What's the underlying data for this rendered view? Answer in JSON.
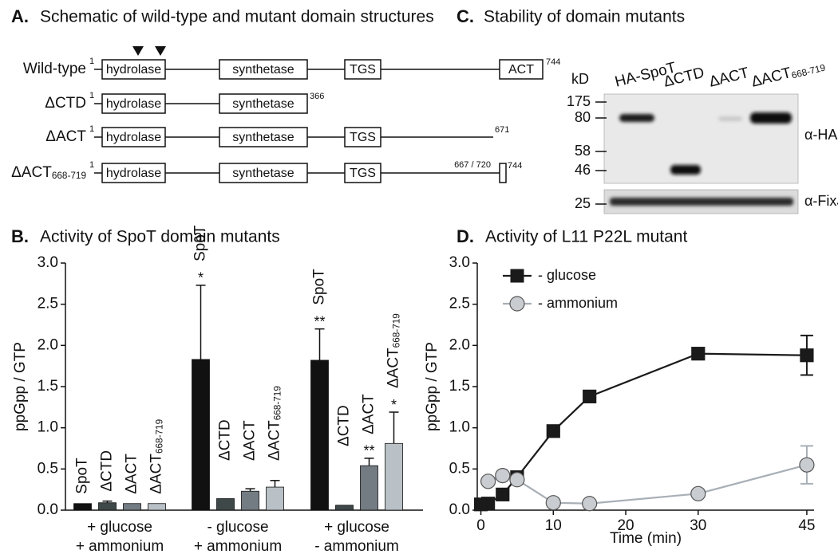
{
  "panel_a": {
    "letter": "A.",
    "title": "Schematic of wild-type and mutant domain structures",
    "rows": [
      {
        "label": "Wild-type",
        "start": "1",
        "end": "744",
        "domains": [
          "hydrolase",
          "synthetase",
          "TGS",
          "ACT"
        ]
      },
      {
        "label": "ΔCTD",
        "start": "1",
        "end": "366",
        "domains": [
          "hydrolase",
          "synthetase"
        ]
      },
      {
        "label": "ΔACT",
        "start": "1",
        "end": "671",
        "domains": [
          "hydrolase",
          "synthetase",
          "TGS"
        ]
      },
      {
        "label": "ΔACT",
        "label_sub": "668-719",
        "start": "1",
        "junction": "667 / 720",
        "end": "744",
        "domains": [
          "hydrolase",
          "synthetase",
          "TGS"
        ]
      }
    ]
  },
  "panel_c": {
    "letter": "C.",
    "title": "Stability of domain mutants",
    "lanes": [
      {
        "label": "HA-SpoT"
      },
      {
        "label": "ΔCTD"
      },
      {
        "label": "ΔACT"
      },
      {
        "label": "ΔACT",
        "label_sub": "668-719"
      }
    ],
    "unit": "kD",
    "markers": [
      175,
      80,
      58,
      46,
      25
    ],
    "antibodies": [
      "α-HA",
      "α-FixJ"
    ]
  },
  "chart_data": [
    {
      "type": "bar",
      "panel": "B.",
      "title": "Activity of SpoT domain mutants",
      "y_label": "ppGpp / GTP",
      "categories": [
        [
          "+ glucose",
          "+ ammonium"
        ],
        [
          "-  glucose",
          "+ ammonium"
        ],
        [
          "+ glucose",
          "-  ammonium"
        ]
      ],
      "ylim": [
        0,
        3
      ],
      "yticks": [
        {
          "value": 0,
          "label": "0.0"
        },
        {
          "value": 0.5,
          "label": "0.5"
        },
        {
          "value": 1,
          "label": "1.0"
        },
        {
          "value": 1.5,
          "label": "1.5"
        },
        {
          "value": 2,
          "label": "2.0"
        },
        {
          "value": 2.5,
          "label": "2.5"
        },
        {
          "value": 3,
          "label": "3.0"
        }
      ],
      "series": [
        {
          "name": "SpoT",
          "color": "#111111",
          "values": [
            0.08,
            1.83,
            1.82
          ],
          "errors": [
            null,
            0.9,
            0.38
          ],
          "stars": [
            null,
            "*",
            "**"
          ]
        },
        {
          "name": "ΔCTD",
          "color": "#3e4848",
          "values": [
            0.09,
            0.14,
            0.06
          ],
          "errors": [
            0.02,
            null,
            null
          ],
          "stars": [
            null,
            null,
            null
          ]
        },
        {
          "name": "ΔACT",
          "color": "#737b83",
          "values": [
            0.08,
            0.23,
            0.54
          ],
          "errors": [
            null,
            0.03,
            0.09
          ],
          "stars": [
            null,
            null,
            "**"
          ]
        },
        {
          "name": "ΔACT",
          "name_sub": "668-719",
          "color": "#b9c0c6",
          "values": [
            0.08,
            0.28,
            0.81
          ],
          "errors": [
            null,
            0.08,
            0.38
          ],
          "stars": [
            null,
            null,
            "*"
          ]
        }
      ]
    },
    {
      "type": "line",
      "panel": "D.",
      "title": "Activity of L11 P22L mutant",
      "x_label": "Time (min)",
      "y_label": "ppGpp / GTP",
      "xlim": [
        -0.5,
        46
      ],
      "xticks": [
        0,
        10,
        20,
        30,
        45
      ],
      "ylim": [
        0,
        3
      ],
      "yticks": [
        {
          "value": 0,
          "label": "0.0"
        },
        {
          "value": 0.5,
          "label": "0.5"
        },
        {
          "value": 1,
          "label": "1.0"
        },
        {
          "value": 1.5,
          "label": "1.5"
        },
        {
          "value": 2,
          "label": "2.0"
        },
        {
          "value": 2.5,
          "label": "2.5"
        },
        {
          "value": 3,
          "label": "3.0"
        }
      ],
      "legend": "upper left",
      "series": [
        {
          "name": "- glucose",
          "color": "#1a1a1a",
          "marker": "square",
          "marker_fill": "#1a1a1a",
          "x": [
            0,
            1,
            3,
            5,
            10,
            15,
            30,
            45
          ],
          "values": [
            0.07,
            0.08,
            0.19,
            0.4,
            0.96,
            1.38,
            1.9,
            1.88
          ],
          "errors": [
            null,
            null,
            null,
            null,
            null,
            null,
            null,
            0.24
          ]
        },
        {
          "name": "- ammonium",
          "color": "#a8afb6",
          "marker": "circle",
          "marker_fill": "#c9cdd1",
          "x": [
            1,
            3,
            5,
            10,
            15,
            30,
            45
          ],
          "values": [
            0.35,
            0.42,
            0.37,
            0.09,
            0.08,
            0.2,
            0.55
          ],
          "errors": [
            null,
            null,
            null,
            null,
            null,
            null,
            0.23
          ]
        }
      ]
    }
  ]
}
